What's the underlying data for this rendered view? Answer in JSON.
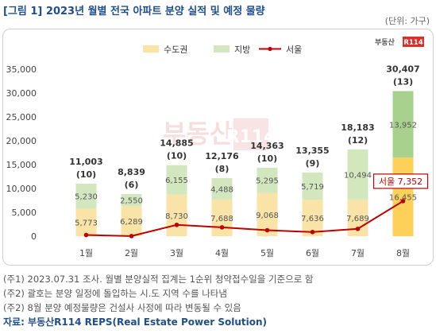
{
  "title": "[그림 1] 2023년 월별 전국 아파트 분양 실적 및 예정 물량",
  "unit": "(단위: 가구)",
  "notes": [
    "(주1) 2023.07.31 조사. 월별 분양실적 집계는 1순위 청약접수일을 기준으로 함",
    "(주2) 괄호는 분양 일정에 돌입하는 시.도 지역 수를 나타냄",
    "(주2) 8월 분양 예정물량은 건설사 사정에 따라 변동될 수 있음"
  ],
  "source": "자료: 부동산R114 REPS(Real Estate Power Solution)",
  "logo": {
    "text": "부동산",
    "badge": "R114"
  },
  "colors": {
    "capital": "#f9e3a6",
    "region": "#d3e7bf",
    "capital_highlight": "#fdd05a",
    "region_highlight": "#a9d18e",
    "seoul": "#c00000",
    "axis_text": "#444444"
  },
  "chart_data": {
    "type": "bar",
    "stacked": true,
    "categories": [
      "1월",
      "2월",
      "3월",
      "4월",
      "5월",
      "6월",
      "7월",
      "8월"
    ],
    "series": [
      {
        "name": "수도권",
        "values": [
          5773,
          6289,
          8730,
          7688,
          9068,
          7636,
          7689,
          16455
        ]
      },
      {
        "name": "지방",
        "values": [
          5230,
          2550,
          6155,
          4488,
          5295,
          5719,
          10494,
          13952
        ]
      }
    ],
    "totals": [
      "11,003",
      "8,839",
      "14,885",
      "12,176",
      "14,363",
      "13,355",
      "18,183",
      "30,407"
    ],
    "region_counts": [
      "(10)",
      "(6)",
      "(10)",
      "(8)",
      "(10)",
      "(9)",
      "(12)",
      "(13)"
    ],
    "line": {
      "name": "서울",
      "values": [
        240,
        19,
        2372,
        1853,
        1250,
        868,
        1535,
        7352
      ]
    },
    "line_callout": "서울 7,352",
    "ylim": [
      0,
      35000
    ],
    "yticks": [
      "0",
      "5,000",
      "10,000",
      "15,000",
      "20,000",
      "25,000",
      "30,000",
      "35,000"
    ],
    "legend_position": "top",
    "grid": false
  }
}
